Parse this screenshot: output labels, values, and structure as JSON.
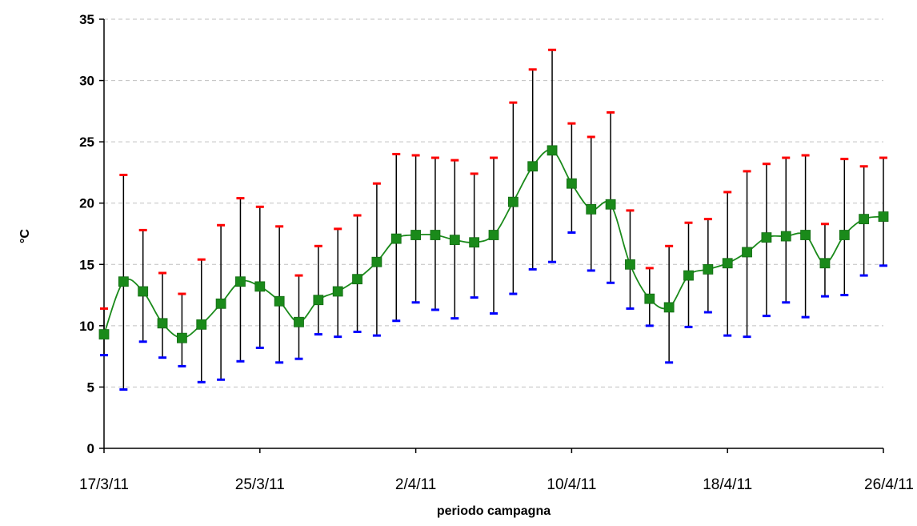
{
  "chart_data": {
    "type": "line",
    "xlabel": "periodo campagna",
    "ylabel": "°C",
    "ylim": [
      0,
      35
    ],
    "yticks": [
      0,
      5,
      10,
      15,
      20,
      25,
      30,
      35
    ],
    "x_tick_labels": [
      {
        "date": "2011-03-17",
        "label": "17/3/11"
      },
      {
        "date": "2011-03-25",
        "label": "25/3/11"
      },
      {
        "date": "2011-04-02",
        "label": "2/4/11"
      },
      {
        "date": "2011-04-10",
        "label": "10/4/11"
      },
      {
        "date": "2011-04-18",
        "label": "18/4/11"
      },
      {
        "date": "2011-04-26",
        "label": "26/4/11"
      }
    ],
    "xlim": [
      "2011-03-17",
      "2011-04-26"
    ],
    "grid": true,
    "legend": "none",
    "colors": {
      "mean": "#1a8a1a",
      "marker": "#1a8a1a",
      "max": "#ff0000",
      "min": "#0000ff",
      "range": "#000000",
      "grid": "#c0c0c0"
    },
    "x": [
      "2011-03-17",
      "2011-03-18",
      "2011-03-19",
      "2011-03-20",
      "2011-03-21",
      "2011-03-22",
      "2011-03-23",
      "2011-03-24",
      "2011-03-25",
      "2011-03-26",
      "2011-03-27",
      "2011-03-28",
      "2011-03-29",
      "2011-03-30",
      "2011-03-31",
      "2011-04-01",
      "2011-04-02",
      "2011-04-03",
      "2011-04-04",
      "2011-04-05",
      "2011-04-06",
      "2011-04-07",
      "2011-04-08",
      "2011-04-09",
      "2011-04-10",
      "2011-04-11",
      "2011-04-12",
      "2011-04-13",
      "2011-04-14",
      "2011-04-15",
      "2011-04-16",
      "2011-04-17",
      "2011-04-18",
      "2011-04-19",
      "2011-04-20",
      "2011-04-21",
      "2011-04-22",
      "2011-04-23",
      "2011-04-24",
      "2011-04-25",
      "2011-04-26"
    ],
    "series": [
      {
        "role": "mean",
        "values": [
          9.3,
          13.6,
          12.8,
          10.2,
          9.0,
          10.1,
          11.8,
          13.6,
          13.2,
          12.0,
          10.3,
          12.1,
          12.8,
          13.8,
          15.2,
          17.1,
          17.4,
          17.4,
          17.0,
          16.8,
          17.4,
          20.1,
          23.0,
          24.3,
          21.6,
          19.5,
          19.9,
          15.0,
          12.2,
          11.5,
          14.1,
          14.6,
          15.1,
          16.0,
          17.2,
          17.3,
          17.4,
          15.1,
          17.4,
          18.7,
          18.9
        ]
      },
      {
        "role": "max",
        "values": [
          11.4,
          22.3,
          17.8,
          14.3,
          12.6,
          15.4,
          18.2,
          20.4,
          19.7,
          18.1,
          14.1,
          16.5,
          17.9,
          19.0,
          21.6,
          24.0,
          23.9,
          23.7,
          23.5,
          22.4,
          23.7,
          28.2,
          30.9,
          32.5,
          26.5,
          25.4,
          27.4,
          19.4,
          14.7,
          16.5,
          18.4,
          18.7,
          20.9,
          22.6,
          23.2,
          23.7,
          23.9,
          18.3,
          23.6,
          23.0,
          23.7
        ]
      },
      {
        "role": "min",
        "values": [
          7.6,
          4.8,
          8.7,
          7.4,
          6.7,
          5.4,
          5.6,
          7.1,
          8.2,
          7.0,
          7.3,
          9.3,
          9.1,
          9.5,
          9.2,
          10.4,
          11.9,
          11.3,
          10.6,
          12.3,
          11.0,
          12.6,
          14.6,
          15.2,
          17.6,
          14.5,
          13.5,
          11.4,
          10.0,
          7.0,
          9.9,
          11.1,
          9.2,
          9.1,
          10.8,
          11.9,
          10.7,
          12.4,
          12.5,
          14.1,
          14.9
        ]
      }
    ]
  }
}
